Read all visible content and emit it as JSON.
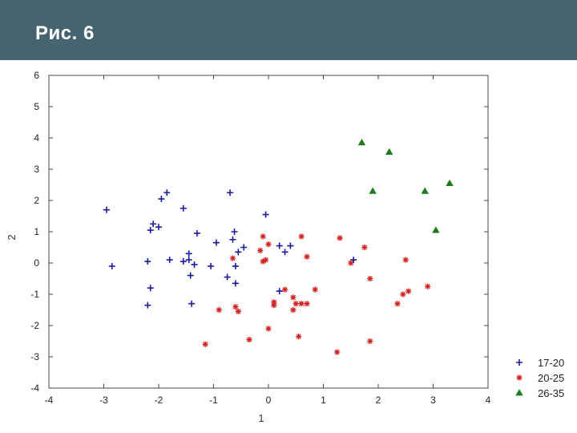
{
  "slide": {
    "title": "Рис. 6"
  },
  "colors": {
    "header_bg": "#456470",
    "series_17_20": "#1a1a9e",
    "series_20_25": "#d42020",
    "series_26_35": "#1e7a1e"
  },
  "chart_data": {
    "type": "scatter",
    "title": "",
    "xlabel": "1",
    "ylabel": "2",
    "xlim": [
      -4,
      4
    ],
    "ylim": [
      -4,
      6
    ],
    "xticks": [
      -4,
      -3,
      -2,
      -1,
      0,
      1,
      2,
      3,
      4
    ],
    "yticks": [
      -4,
      -3,
      -2,
      -1,
      0,
      1,
      2,
      3,
      4,
      5,
      6
    ],
    "grid": false,
    "legend_position": "bottom-right",
    "series": [
      {
        "name": "17-20",
        "marker": "plus",
        "color": "#1a1a9e",
        "points": [
          [
            -2.95,
            1.7
          ],
          [
            -2.85,
            -0.1
          ],
          [
            -2.2,
            0.05
          ],
          [
            -2.2,
            -1.35
          ],
          [
            -2.15,
            1.05
          ],
          [
            -2.15,
            -0.8
          ],
          [
            -2.1,
            1.25
          ],
          [
            -2.0,
            1.15
          ],
          [
            -1.95,
            2.05
          ],
          [
            -1.85,
            2.25
          ],
          [
            -1.8,
            0.1
          ],
          [
            -1.55,
            0.05
          ],
          [
            -1.55,
            1.75
          ],
          [
            -1.45,
            0.3
          ],
          [
            -1.45,
            0.1
          ],
          [
            -1.42,
            -0.4
          ],
          [
            -1.4,
            -1.3
          ],
          [
            -1.35,
            -0.05
          ],
          [
            -1.3,
            0.95
          ],
          [
            -1.05,
            -0.1
          ],
          [
            -0.95,
            0.65
          ],
          [
            -0.75,
            -0.45
          ],
          [
            -0.7,
            2.25
          ],
          [
            -0.65,
            0.75
          ],
          [
            -0.62,
            1.0
          ],
          [
            -0.6,
            -0.65
          ],
          [
            -0.6,
            -0.1
          ],
          [
            -0.55,
            0.35
          ],
          [
            -0.45,
            0.5
          ],
          [
            -0.05,
            1.55
          ],
          [
            0.2,
            -0.9
          ],
          [
            0.2,
            0.55
          ],
          [
            0.3,
            0.35
          ],
          [
            0.4,
            0.55
          ],
          [
            1.55,
            0.1
          ]
        ]
      },
      {
        "name": "20-25",
        "marker": "asterisk",
        "color": "#d42020",
        "points": [
          [
            -1.15,
            -2.6
          ],
          [
            -0.9,
            -1.5
          ],
          [
            -0.65,
            0.15
          ],
          [
            -0.6,
            -1.4
          ],
          [
            -0.55,
            -1.55
          ],
          [
            -0.35,
            -2.45
          ],
          [
            -0.15,
            0.4
          ],
          [
            -0.1,
            0.05
          ],
          [
            -0.1,
            0.85
          ],
          [
            -0.05,
            0.1
          ],
          [
            0.0,
            0.6
          ],
          [
            0.0,
            -2.1
          ],
          [
            0.1,
            -1.25
          ],
          [
            0.1,
            -1.35
          ],
          [
            0.3,
            -0.85
          ],
          [
            0.45,
            -1.1
          ],
          [
            0.45,
            -1.5
          ],
          [
            0.5,
            -1.3
          ],
          [
            0.55,
            -2.35
          ],
          [
            0.6,
            -1.3
          ],
          [
            0.6,
            0.85
          ],
          [
            0.7,
            -1.3
          ],
          [
            0.7,
            0.2
          ],
          [
            0.85,
            -0.85
          ],
          [
            1.25,
            -2.85
          ],
          [
            1.3,
            0.8
          ],
          [
            1.5,
            0.0
          ],
          [
            1.75,
            0.5
          ],
          [
            1.85,
            -0.5
          ],
          [
            1.85,
            -2.5
          ],
          [
            2.35,
            -1.3
          ],
          [
            2.45,
            -1.0
          ],
          [
            2.5,
            0.1
          ],
          [
            2.55,
            -0.9
          ],
          [
            2.9,
            -0.75
          ]
        ]
      },
      {
        "name": "26-35",
        "marker": "triangle",
        "color": "#1e7a1e",
        "points": [
          [
            1.7,
            3.85
          ],
          [
            1.9,
            2.3
          ],
          [
            2.2,
            3.55
          ],
          [
            2.85,
            2.3
          ],
          [
            3.05,
            1.05
          ],
          [
            3.3,
            2.55
          ]
        ]
      }
    ]
  }
}
